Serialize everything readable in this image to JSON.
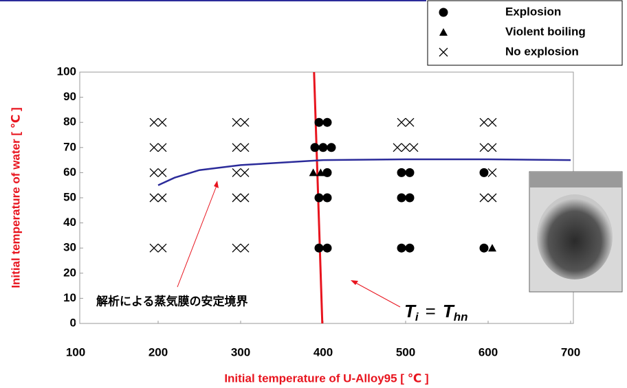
{
  "chart_data": {
    "type": "scatter",
    "x_label": "Initial temperature of U-Alloy95 [ ℃ ]",
    "y_label": "Initial temperature of water [ ℃ ]",
    "xlim": [
      100,
      700
    ],
    "ylim": [
      0,
      100
    ],
    "xticks": [
      100,
      200,
      300,
      400,
      500,
      600,
      700
    ],
    "yticks": [
      0,
      10,
      20,
      30,
      40,
      50,
      60,
      70,
      80,
      90,
      100
    ],
    "series": [
      {
        "name": "Explosion",
        "marker": "circle",
        "color": "#000000",
        "x": [
          395,
          405,
          390,
          400,
          410,
          405,
          395,
          405,
          395,
          405,
          495,
          505,
          495,
          505,
          495,
          505,
          595,
          595
        ],
        "y": [
          80,
          80,
          70,
          70,
          70,
          60,
          50,
          50,
          30,
          30,
          60,
          60,
          50,
          50,
          30,
          30,
          60,
          30
        ]
      },
      {
        "name": "Violent boiling",
        "marker": "triangle",
        "color": "#000000",
        "x": [
          388,
          397,
          605
        ],
        "y": [
          60,
          60,
          30
        ]
      },
      {
        "name": "No explosion",
        "marker": "cross",
        "color": "#000000",
        "x": [
          195,
          205,
          195,
          205,
          195,
          205,
          195,
          205,
          195,
          205,
          295,
          305,
          295,
          305,
          295,
          305,
          295,
          305,
          295,
          305,
          495,
          505,
          490,
          500,
          510,
          595,
          605,
          595,
          605,
          605,
          595,
          605
        ],
        "y": [
          80,
          80,
          70,
          70,
          60,
          60,
          50,
          50,
          30,
          30,
          80,
          80,
          70,
          70,
          60,
          60,
          50,
          50,
          30,
          30,
          80,
          80,
          70,
          70,
          70,
          80,
          80,
          70,
          70,
          60,
          50,
          50
        ]
      }
    ],
    "lines": [
      {
        "color": "#e8141e",
        "x": [
          389,
          399
        ],
        "y": [
          100,
          0
        ]
      },
      {
        "color": "#2b2b9a",
        "x": [
          200,
          220,
          250,
          300,
          350,
          400,
          500,
          600,
          700
        ],
        "y": [
          55,
          58,
          61,
          63,
          64,
          65,
          65.3,
          65.3,
          65
        ]
      }
    ],
    "annotation": "解析による蒸気膜の安定境界",
    "formula": {
      "left": "T",
      "left_sub": "i",
      "op": "=",
      "right": "T",
      "right_sub": "hn"
    }
  }
}
